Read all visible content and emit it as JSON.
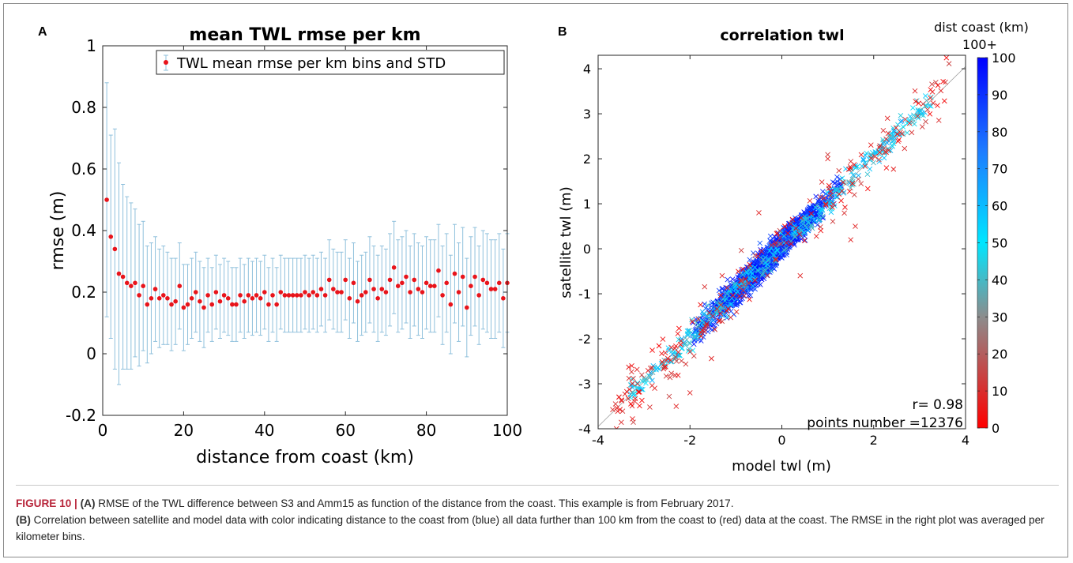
{
  "figure": {
    "panel_a_letter": "A",
    "panel_b_letter": "B",
    "caption_figure_label": "FIGURE 10 |",
    "caption_line1_label": "(A)",
    "caption_line1_text": "RMSE of the TWL difference between S3 and Amm15 as function of the distance from the coast. This example is from February 2017.",
    "caption_line2_label": "(B)",
    "caption_line2_text": "Correlation between satellite and model data with color indicating distance to the coast from (blue) all data further than 100 km from the coast to (red) data at the coast. The RMSE in the right plot was averaged per kilometer bins."
  },
  "chart_data": [
    {
      "type": "scatter",
      "title": "mean TWL rmse per km",
      "xlabel": "distance from coast (km)",
      "ylabel": "rmse (m)",
      "xlim": [
        0,
        100
      ],
      "ylim": [
        -0.2,
        1
      ],
      "xticks": [
        0,
        20,
        40,
        60,
        80,
        100
      ],
      "xtick_labels": [
        "0",
        "20",
        "40",
        "60",
        "80",
        "100"
      ],
      "yticks": [
        -0.2,
        0,
        0.2,
        0.4,
        0.6,
        0.8,
        1
      ],
      "ytick_labels": [
        "-0.2",
        "0",
        "0.2",
        "0.4",
        "0.6",
        "0.8",
        "1"
      ],
      "legend": "TWL mean rmse per km bins and STD",
      "legend_position": "top-right",
      "grid": false,
      "point_color": "#e8141b",
      "errorbar_color": "#8fc0dc",
      "x": [
        1,
        2,
        3,
        4,
        5,
        6,
        7,
        8,
        9,
        10,
        11,
        12,
        13,
        14,
        15,
        16,
        17,
        18,
        19,
        20,
        21,
        22,
        23,
        24,
        25,
        26,
        27,
        28,
        29,
        30,
        31,
        32,
        33,
        34,
        35,
        36,
        37,
        38,
        39,
        40,
        41,
        42,
        43,
        44,
        45,
        46,
        47,
        48,
        49,
        50,
        51,
        52,
        53,
        54,
        55,
        56,
        57,
        58,
        59,
        60,
        61,
        62,
        63,
        64,
        65,
        66,
        67,
        68,
        69,
        70,
        71,
        72,
        73,
        74,
        75,
        76,
        77,
        78,
        79,
        80,
        81,
        82,
        83,
        84,
        85,
        86,
        87,
        88,
        89,
        90,
        91,
        92,
        93,
        94,
        95,
        96,
        97,
        98,
        99,
        100
      ],
      "y": [
        0.5,
        0.38,
        0.34,
        0.26,
        0.25,
        0.23,
        0.22,
        0.23,
        0.19,
        0.22,
        0.16,
        0.18,
        0.21,
        0.18,
        0.19,
        0.18,
        0.16,
        0.17,
        0.22,
        0.15,
        0.16,
        0.18,
        0.2,
        0.17,
        0.15,
        0.19,
        0.16,
        0.2,
        0.17,
        0.19,
        0.18,
        0.16,
        0.16,
        0.19,
        0.17,
        0.19,
        0.18,
        0.19,
        0.18,
        0.2,
        0.16,
        0.19,
        0.16,
        0.2,
        0.19,
        0.19,
        0.19,
        0.19,
        0.19,
        0.2,
        0.19,
        0.2,
        0.19,
        0.21,
        0.19,
        0.24,
        0.21,
        0.2,
        0.2,
        0.24,
        0.18,
        0.23,
        0.17,
        0.19,
        0.2,
        0.24,
        0.21,
        0.18,
        0.21,
        0.2,
        0.24,
        0.28,
        0.22,
        0.23,
        0.25,
        0.2,
        0.24,
        0.21,
        0.2,
        0.23,
        0.22,
        0.22,
        0.27,
        0.19,
        0.23,
        0.16,
        0.26,
        0.2,
        0.25,
        0.15,
        0.22,
        0.25,
        0.19,
        0.24,
        0.23,
        0.21,
        0.21,
        0.23,
        0.18,
        0.23
      ],
      "std": [
        0.38,
        0.33,
        0.39,
        0.36,
        0.3,
        0.28,
        0.27,
        0.24,
        0.23,
        0.21,
        0.19,
        0.18,
        0.17,
        0.16,
        0.16,
        0.15,
        0.15,
        0.14,
        0.14,
        0.14,
        0.13,
        0.13,
        0.13,
        0.13,
        0.13,
        0.12,
        0.12,
        0.12,
        0.12,
        0.12,
        0.12,
        0.12,
        0.12,
        0.12,
        0.12,
        0.12,
        0.12,
        0.12,
        0.12,
        0.12,
        0.12,
        0.12,
        0.12,
        0.12,
        0.12,
        0.12,
        0.12,
        0.12,
        0.12,
        0.12,
        0.12,
        0.12,
        0.12,
        0.12,
        0.12,
        0.13,
        0.13,
        0.13,
        0.13,
        0.13,
        0.13,
        0.13,
        0.13,
        0.13,
        0.13,
        0.14,
        0.14,
        0.14,
        0.14,
        0.14,
        0.15,
        0.15,
        0.15,
        0.15,
        0.15,
        0.15,
        0.15,
        0.15,
        0.15,
        0.15,
        0.15,
        0.15,
        0.15,
        0.16,
        0.16,
        0.16,
        0.16,
        0.16,
        0.16,
        0.16,
        0.16,
        0.16,
        0.16,
        0.16,
        0.16,
        0.16,
        0.16,
        0.16,
        0.16,
        0.16
      ]
    },
    {
      "type": "scatter",
      "title": "correlation twl",
      "xlabel": "model twl (m)",
      "ylabel": "satellite twl (m)",
      "xlim": [
        -4,
        4
      ],
      "ylim": [
        -4,
        4.3
      ],
      "xticks": [
        -4,
        -2,
        0,
        2,
        4
      ],
      "xtick_labels": [
        "-4",
        "-2",
        "0",
        "2",
        "4"
      ],
      "yticks": [
        -4,
        -3,
        -2,
        -1,
        0,
        1,
        2,
        3,
        4
      ],
      "ytick_labels": [
        "-4",
        "-3",
        "-2",
        "-1",
        "0",
        "1",
        "2",
        "3",
        "4"
      ],
      "grid": false,
      "marker": "x",
      "colorbar": {
        "label": "dist coast (km)",
        "top_label": "100+",
        "range": [
          0,
          100
        ],
        "ticks": [
          0,
          10,
          20,
          30,
          40,
          50,
          60,
          70,
          80,
          90,
          100
        ],
        "tick_labels": [
          "0",
          "10",
          "20",
          "30",
          "40",
          "50",
          "60",
          "70",
          "80",
          "90",
          "100"
        ],
        "colors": [
          "#ff0000",
          "#8c8c8c",
          "#00ffff",
          "#0000ff"
        ]
      },
      "annotations": [
        "r= 0.98",
        "points number =12376"
      ],
      "r": 0.98,
      "points_number": 12376
    }
  ]
}
